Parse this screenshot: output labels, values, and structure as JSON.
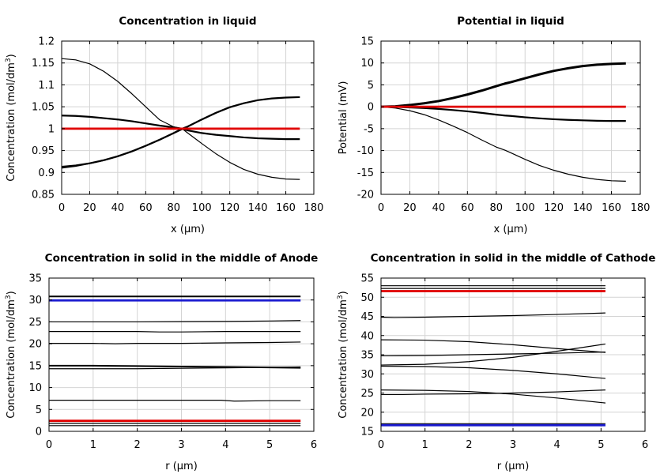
{
  "chart_data": [
    {
      "type": "line",
      "title": "Concentration in liquid",
      "xlabel": "x (µm)",
      "ylabel": "Concentration (mol/dm",
      "ylabel_sup": "3",
      "ylabel_tail": ")",
      "xlim": [
        0,
        180
      ],
      "ylim": [
        0.85,
        1.2
      ],
      "xticks": [
        "0",
        "20",
        "40",
        "60",
        "80",
        "100",
        "120",
        "140",
        "160",
        "180"
      ],
      "yticks": [
        "0.85",
        "0.9",
        "0.95",
        "1",
        "1.05",
        "1.1",
        "1.15",
        "1.2"
      ],
      "grid": true,
      "series": [
        {
          "name": "t-A",
          "color": "#000000",
          "width": 1.2,
          "x": [
            0,
            10,
            20,
            30,
            40,
            50,
            60,
            70,
            80,
            86,
            90,
            100,
            110,
            120,
            130,
            140,
            150,
            160,
            170
          ],
          "y": [
            1.16,
            1.157,
            1.148,
            1.131,
            1.108,
            1.08,
            1.05,
            1.02,
            1.004,
            1.0,
            0.99,
            0.966,
            0.943,
            0.923,
            0.907,
            0.896,
            0.889,
            0.885,
            0.884
          ]
        },
        {
          "name": "t-B",
          "color": "#000000",
          "width": 2.2,
          "x": [
            0,
            10,
            20,
            30,
            40,
            50,
            60,
            70,
            80,
            86,
            90,
            100,
            110,
            120,
            130,
            140,
            150,
            160,
            170
          ],
          "y": [
            1.03,
            1.029,
            1.027,
            1.024,
            1.021,
            1.017,
            1.012,
            1.007,
            1.003,
            1.0,
            0.996,
            0.99,
            0.986,
            0.983,
            0.98,
            0.978,
            0.977,
            0.976,
            0.976
          ]
        },
        {
          "name": "t-C",
          "color": "#000000",
          "width": 2.2,
          "x": [
            0,
            10,
            20,
            30,
            40,
            50,
            60,
            70,
            80,
            86,
            90,
            100,
            110,
            120,
            130,
            140,
            150,
            160,
            170
          ],
          "y": [
            0.913,
            0.916,
            0.921,
            0.928,
            0.937,
            0.948,
            0.961,
            0.975,
            0.99,
            1.0,
            1.005,
            1.021,
            1.036,
            1.049,
            1.058,
            1.065,
            1.069,
            1.071,
            1.072
          ]
        },
        {
          "name": "t-D",
          "color": "#000000",
          "width": 1.2,
          "x": [
            0,
            10,
            20,
            30,
            40,
            50,
            60,
            70,
            80,
            86,
            90,
            100,
            110,
            120,
            130,
            140,
            150,
            160,
            170
          ],
          "y": [
            0.91,
            0.914,
            0.92,
            0.927,
            0.936,
            0.947,
            0.96,
            0.974,
            0.989,
            0.998,
            1.004,
            1.02,
            1.035,
            1.048,
            1.058,
            1.065,
            1.069,
            1.071,
            1.072
          ]
        },
        {
          "name": "t0",
          "color": "#e00000",
          "width": 2.8,
          "x": [
            0,
            170
          ],
          "y": [
            1.0,
            1.0
          ]
        }
      ]
    },
    {
      "type": "line",
      "title": "Potential in liquid",
      "xlabel": "x (µm)",
      "ylabel": "Potential (mV)",
      "ylabel_sup": "",
      "ylabel_tail": "",
      "xlim": [
        0,
        180
      ],
      "ylim": [
        -20,
        15
      ],
      "xticks": [
        "0",
        "20",
        "40",
        "60",
        "80",
        "100",
        "120",
        "140",
        "160",
        "180"
      ],
      "yticks": [
        "-20",
        "-15",
        "-10",
        "-5",
        "0",
        "5",
        "10",
        "15"
      ],
      "grid": true,
      "series": [
        {
          "name": "t-A",
          "color": "#000000",
          "width": 3.0,
          "x": [
            0,
            10,
            20,
            30,
            40,
            50,
            60,
            70,
            80,
            86,
            90,
            100,
            110,
            120,
            130,
            140,
            150,
            160,
            170
          ],
          "y": [
            0,
            0.1,
            0.4,
            0.8,
            1.3,
            2.0,
            2.8,
            3.7,
            4.7,
            5.3,
            5.6,
            6.5,
            7.4,
            8.2,
            8.8,
            9.3,
            9.6,
            9.8,
            9.9
          ]
        },
        {
          "name": "t-B",
          "color": "#000000",
          "width": 2.2,
          "x": [
            0,
            10,
            20,
            30,
            40,
            50,
            60,
            70,
            80,
            86,
            90,
            100,
            110,
            120,
            130,
            140,
            150,
            160,
            170
          ],
          "y": [
            0,
            -0.05,
            -0.15,
            -0.3,
            -0.5,
            -0.75,
            -1.05,
            -1.4,
            -1.8,
            -2.0,
            -2.1,
            -2.4,
            -2.65,
            -2.85,
            -3.0,
            -3.1,
            -3.2,
            -3.25,
            -3.25
          ]
        },
        {
          "name": "t-C",
          "color": "#000000",
          "width": 1.2,
          "x": [
            0,
            10,
            20,
            30,
            40,
            50,
            60,
            70,
            80,
            86,
            90,
            100,
            110,
            120,
            130,
            140,
            150,
            160,
            170
          ],
          "y": [
            0,
            -0.3,
            -0.9,
            -1.8,
            -3.0,
            -4.4,
            -5.9,
            -7.6,
            -9.2,
            -9.9,
            -10.5,
            -12.0,
            -13.4,
            -14.5,
            -15.4,
            -16.1,
            -16.6,
            -16.9,
            -17.0
          ]
        },
        {
          "name": "t0",
          "color": "#e00000",
          "width": 2.8,
          "x": [
            0,
            170
          ],
          "y": [
            0,
            0
          ]
        }
      ]
    },
    {
      "type": "line",
      "title": "Concentration in solid in the middle of Anode",
      "xlabel": "r (µm)",
      "ylabel": "Concentration (mol/dm",
      "ylabel_sup": "3",
      "ylabel_tail": ")",
      "xlim": [
        0,
        6
      ],
      "ylim": [
        0,
        35
      ],
      "xticks": [
        "0",
        "1",
        "2",
        "3",
        "4",
        "5",
        "6"
      ],
      "yticks": [
        "0",
        "5",
        "10",
        "15",
        "20",
        "25",
        "30",
        "35"
      ],
      "grid": true,
      "series": [
        {
          "name": "a1",
          "color": "#000000",
          "width": 2.0,
          "x": [
            0,
            5.7
          ],
          "y": [
            30.8,
            30.8
          ]
        },
        {
          "name": "a2",
          "color": "#1a1ad0",
          "width": 2.8,
          "x": [
            0,
            5.7
          ],
          "y": [
            29.9,
            29.9
          ]
        },
        {
          "name": "a3",
          "color": "#000000",
          "width": 1.2,
          "x": [
            0,
            1,
            2,
            3,
            4,
            5,
            5.7
          ],
          "y": [
            25.0,
            25.0,
            25.0,
            25.05,
            25.1,
            25.2,
            25.3
          ]
        },
        {
          "name": "a4",
          "color": "#000000",
          "width": 1.2,
          "x": [
            0,
            1,
            2,
            2.5,
            3,
            4,
            5,
            5.7
          ],
          "y": [
            22.8,
            22.8,
            22.8,
            22.7,
            22.7,
            22.8,
            22.8,
            22.8
          ]
        },
        {
          "name": "a5",
          "color": "#000000",
          "width": 1.2,
          "x": [
            0,
            1,
            1.5,
            2,
            3,
            4,
            5,
            5.7
          ],
          "y": [
            20.1,
            20.1,
            20.0,
            20.1,
            20.1,
            20.2,
            20.3,
            20.4
          ]
        },
        {
          "name": "a6",
          "color": "#000000",
          "width": 2.0,
          "x": [
            0,
            1,
            2,
            3,
            4,
            5,
            5.7
          ],
          "y": [
            15.0,
            15.0,
            14.9,
            14.8,
            14.7,
            14.6,
            14.5
          ]
        },
        {
          "name": "a7",
          "color": "#000000",
          "width": 1.2,
          "x": [
            0,
            1,
            2,
            3,
            4,
            5,
            5.7
          ],
          "y": [
            14.3,
            14.3,
            14.3,
            14.4,
            14.5,
            14.6,
            14.7
          ]
        },
        {
          "name": "a8",
          "color": "#000000",
          "width": 1.2,
          "x": [
            0,
            1,
            2,
            3,
            3.9,
            4.2,
            5,
            5.7
          ],
          "y": [
            7.1,
            7.1,
            7.1,
            7.1,
            7.1,
            6.9,
            7.0,
            7.0
          ]
        },
        {
          "name": "a9",
          "color": "#e00000",
          "width": 2.8,
          "x": [
            0,
            5.7
          ],
          "y": [
            2.4,
            2.4
          ]
        },
        {
          "name": "a10",
          "color": "#000000",
          "width": 1.2,
          "x": [
            0,
            5.7
          ],
          "y": [
            1.8,
            1.8
          ]
        },
        {
          "name": "a11",
          "color": "#000000",
          "width": 1.2,
          "x": [
            0,
            5.7
          ],
          "y": [
            1.3,
            1.3
          ]
        }
      ]
    },
    {
      "type": "line",
      "title": "Concentration in solid in the middle of Cathode",
      "xlabel": "r (µm)",
      "ylabel": "Concentration (mol/dm",
      "ylabel_sup": "3",
      "ylabel_tail": ")",
      "xlim": [
        0,
        6
      ],
      "ylim": [
        15,
        55
      ],
      "xticks": [
        "0",
        "1",
        "2",
        "3",
        "4",
        "5",
        "6"
      ],
      "yticks": [
        "15",
        "20",
        "25",
        "30",
        "35",
        "40",
        "45",
        "50",
        "55"
      ],
      "grid": true,
      "series": [
        {
          "name": "c1",
          "color": "#000000",
          "width": 1.2,
          "x": [
            0,
            5.1
          ],
          "y": [
            53.0,
            53.0
          ]
        },
        {
          "name": "c2",
          "color": "#000000",
          "width": 1.2,
          "x": [
            0,
            5.1
          ],
          "y": [
            52.3,
            52.3
          ]
        },
        {
          "name": "c3",
          "color": "#e00000",
          "width": 2.8,
          "x": [
            0,
            5.1
          ],
          "y": [
            51.6,
            51.6
          ]
        },
        {
          "name": "c4",
          "color": "#000000",
          "width": 1.2,
          "x": [
            0,
            0.3,
            1,
            2,
            3,
            4,
            5.1
          ],
          "y": [
            44.8,
            44.7,
            44.8,
            45.0,
            45.2,
            45.5,
            45.9
          ]
        },
        {
          "name": "c5",
          "color": "#000000",
          "width": 1.2,
          "x": [
            0,
            1,
            2,
            3,
            4,
            5.1
          ],
          "y": [
            38.9,
            38.8,
            38.4,
            37.6,
            36.6,
            35.6
          ]
        },
        {
          "name": "c6",
          "color": "#000000",
          "width": 1.2,
          "x": [
            0,
            1,
            2,
            3,
            4,
            5.1
          ],
          "y": [
            34.7,
            34.8,
            35.0,
            35.2,
            35.4,
            35.7
          ]
        },
        {
          "name": "c7",
          "color": "#000000",
          "width": 1.2,
          "x": [
            0,
            1,
            2,
            3,
            4,
            5.1
          ],
          "y": [
            32.3,
            32.5,
            33.2,
            34.3,
            35.9,
            37.8
          ]
        },
        {
          "name": "c8",
          "color": "#000000",
          "width": 1.2,
          "x": [
            0,
            1,
            2,
            3,
            4,
            5.1
          ],
          "y": [
            32.0,
            31.9,
            31.6,
            30.9,
            30.0,
            28.8
          ]
        },
        {
          "name": "c9",
          "color": "#000000",
          "width": 1.2,
          "x": [
            0,
            1,
            2,
            3,
            4,
            5.1
          ],
          "y": [
            25.8,
            25.7,
            25.4,
            24.7,
            23.7,
            22.4
          ]
        },
        {
          "name": "c10",
          "color": "#000000",
          "width": 1.2,
          "x": [
            0,
            0.5,
            1,
            2,
            3,
            4,
            5.1
          ],
          "y": [
            24.6,
            24.6,
            24.7,
            24.8,
            25.0,
            25.3,
            25.8
          ]
        },
        {
          "name": "c11",
          "color": "#000000",
          "width": 1.2,
          "x": [
            0,
            5.1
          ],
          "y": [
            17.0,
            17.0
          ]
        },
        {
          "name": "c12",
          "color": "#1a1ad0",
          "width": 2.8,
          "x": [
            0,
            5.1
          ],
          "y": [
            16.6,
            16.6
          ]
        }
      ]
    }
  ]
}
